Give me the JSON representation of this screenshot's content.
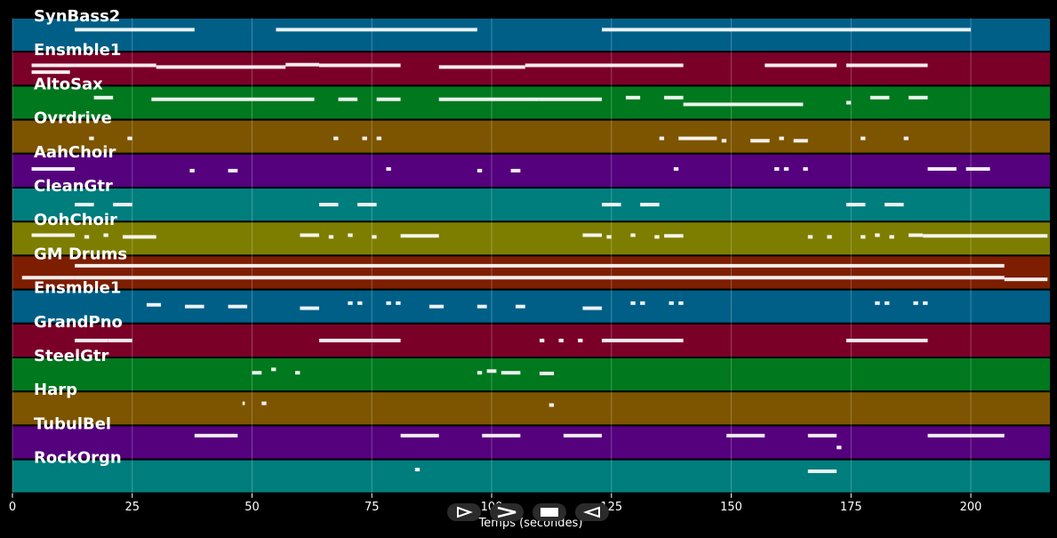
{
  "chart_data": {
    "type": "piano-roll",
    "xlabel": "Temps (secondes)",
    "xlim": [
      0,
      216.5
    ],
    "xticks": [
      0,
      25,
      50,
      75,
      100,
      125,
      150,
      175,
      200
    ],
    "grid": true,
    "tracks": [
      {
        "name": "SynBass2",
        "color": "#005f87",
        "notes": [
          [
            13,
            38,
            0.35
          ],
          [
            55,
            97,
            0.35
          ],
          [
            123,
            200,
            0.35
          ]
        ]
      },
      {
        "name": "Ensmble1",
        "color": "#7b0028",
        "notes": [
          [
            4,
            13,
            0.4
          ],
          [
            4,
            12,
            0.6
          ],
          [
            13,
            30,
            0.4
          ],
          [
            30,
            57,
            0.45
          ],
          [
            57,
            64,
            0.38
          ],
          [
            64,
            81,
            0.4
          ],
          [
            89,
            107,
            0.45
          ],
          [
            107,
            123,
            0.4
          ],
          [
            123,
            140,
            0.4
          ],
          [
            157,
            172,
            0.4
          ],
          [
            174,
            191,
            0.4
          ]
        ]
      },
      {
        "name": "AltoSax",
        "color": "#00781e",
        "notes": [
          [
            17,
            21,
            0.35
          ],
          [
            29,
            63,
            0.4
          ],
          [
            68,
            72,
            0.4
          ],
          [
            76,
            81,
            0.4
          ],
          [
            89,
            110,
            0.4
          ],
          [
            110,
            123,
            0.4
          ],
          [
            128,
            131,
            0.35
          ],
          [
            136,
            140,
            0.35
          ],
          [
            140,
            165,
            0.55
          ],
          [
            174,
            175,
            0.5
          ],
          [
            179,
            183,
            0.35
          ],
          [
            187,
            191,
            0.35
          ]
        ]
      },
      {
        "name": "Ovrdrive",
        "color": "#7d5400",
        "notes": [
          [
            16,
            17,
            0.55
          ],
          [
            24,
            25,
            0.55
          ],
          [
            67,
            68,
            0.55
          ],
          [
            73,
            74,
            0.55
          ],
          [
            76,
            77,
            0.55
          ],
          [
            135,
            136,
            0.55
          ],
          [
            139,
            147,
            0.55
          ],
          [
            148,
            149,
            0.62
          ],
          [
            154,
            158,
            0.62
          ],
          [
            160,
            161,
            0.55
          ],
          [
            163,
            166,
            0.62
          ],
          [
            177,
            178,
            0.55
          ],
          [
            186,
            187,
            0.55
          ]
        ]
      },
      {
        "name": "AahChoir",
        "color": "#55007d",
        "notes": [
          [
            4,
            13,
            0.45
          ],
          [
            37,
            38,
            0.5
          ],
          [
            45,
            47,
            0.5
          ],
          [
            78,
            79,
            0.45
          ],
          [
            97,
            98,
            0.5
          ],
          [
            104,
            106,
            0.5
          ],
          [
            138,
            139,
            0.45
          ],
          [
            159,
            160,
            0.45
          ],
          [
            161,
            162,
            0.45
          ],
          [
            165,
            166,
            0.45
          ],
          [
            191,
            197,
            0.45
          ],
          [
            199,
            204,
            0.45
          ]
        ]
      },
      {
        "name": "CleanGtr",
        "color": "#007d7d",
        "notes": [
          [
            13,
            17,
            0.5
          ],
          [
            21,
            25,
            0.5
          ],
          [
            64,
            68,
            0.5
          ],
          [
            72,
            76,
            0.5
          ],
          [
            123,
            127,
            0.5
          ],
          [
            131,
            135,
            0.5
          ],
          [
            174,
            178,
            0.5
          ],
          [
            182,
            186,
            0.5
          ]
        ]
      },
      {
        "name": "OohChoir",
        "color": "#7d7d00",
        "notes": [
          [
            4,
            13,
            0.4
          ],
          [
            15,
            16,
            0.45
          ],
          [
            19,
            20,
            0.4
          ],
          [
            23,
            30,
            0.45
          ],
          [
            60,
            64,
            0.4
          ],
          [
            66,
            67,
            0.45
          ],
          [
            70,
            71,
            0.4
          ],
          [
            75,
            76,
            0.45
          ],
          [
            81,
            89,
            0.42
          ],
          [
            119,
            123,
            0.4
          ],
          [
            124,
            125,
            0.45
          ],
          [
            129,
            130,
            0.4
          ],
          [
            134,
            135,
            0.45
          ],
          [
            136,
            140,
            0.42
          ],
          [
            166,
            167,
            0.45
          ],
          [
            170,
            171,
            0.45
          ],
          [
            177,
            178,
            0.45
          ],
          [
            180,
            181,
            0.4
          ],
          [
            183,
            184,
            0.45
          ],
          [
            187,
            190,
            0.4
          ],
          [
            190,
            216,
            0.42
          ]
        ]
      },
      {
        "name": "GM Drums",
        "color": "#7d1e00",
        "notes": [
          [
            13,
            207,
            0.3
          ],
          [
            13,
            207,
            0.65
          ],
          [
            2,
            13,
            0.65
          ],
          [
            207,
            216,
            0.7
          ]
        ]
      },
      {
        "name": "Ensmble1",
        "color": "#005f87",
        "notes": [
          [
            28,
            31,
            0.45
          ],
          [
            36,
            40,
            0.5
          ],
          [
            45,
            49,
            0.5
          ],
          [
            60,
            64,
            0.55
          ],
          [
            70,
            71,
            0.4
          ],
          [
            72,
            73,
            0.4
          ],
          [
            78,
            79,
            0.4
          ],
          [
            80,
            81,
            0.4
          ],
          [
            87,
            90,
            0.5
          ],
          [
            97,
            99,
            0.5
          ],
          [
            105,
            107,
            0.5
          ],
          [
            119,
            123,
            0.55
          ],
          [
            129,
            130,
            0.4
          ],
          [
            131,
            132,
            0.4
          ],
          [
            137,
            138,
            0.4
          ],
          [
            139,
            140,
            0.4
          ],
          [
            180,
            181,
            0.4
          ],
          [
            182,
            183,
            0.4
          ],
          [
            188,
            189,
            0.4
          ],
          [
            190,
            191,
            0.4
          ]
        ]
      },
      {
        "name": "GrandPno",
        "color": "#7b0028",
        "notes": [
          [
            13,
            20,
            0.5
          ],
          [
            20,
            25,
            0.5
          ],
          [
            64,
            81,
            0.5
          ],
          [
            110,
            111,
            0.5
          ],
          [
            114,
            115,
            0.5
          ],
          [
            118,
            119,
            0.5
          ],
          [
            123,
            140,
            0.5
          ],
          [
            174,
            191,
            0.5
          ]
        ]
      },
      {
        "name": "SteelGtr",
        "color": "#00781e",
        "notes": [
          [
            50,
            52,
            0.45
          ],
          [
            54,
            55,
            0.35
          ],
          [
            59,
            60,
            0.45
          ],
          [
            97,
            98,
            0.45
          ],
          [
            99,
            101,
            0.4
          ],
          [
            102,
            106,
            0.45
          ],
          [
            110,
            113,
            0.47
          ]
        ]
      },
      {
        "name": "Harp",
        "color": "#7d5400",
        "notes": [
          [
            48,
            48.5,
            0.35
          ],
          [
            52,
            53,
            0.35
          ],
          [
            112,
            113,
            0.4
          ]
        ]
      },
      {
        "name": "TubulBel",
        "color": "#55007d",
        "notes": [
          [
            38,
            47,
            0.3
          ],
          [
            81,
            89,
            0.3
          ],
          [
            98,
            106,
            0.3
          ],
          [
            115,
            123,
            0.3
          ],
          [
            149,
            157,
            0.3
          ],
          [
            166,
            172,
            0.3
          ],
          [
            172,
            173,
            0.65
          ],
          [
            191,
            207,
            0.3
          ]
        ]
      },
      {
        "name": "RockOrgn",
        "color": "#007d7d",
        "notes": [
          [
            84,
            85,
            0.3
          ],
          [
            166,
            172,
            0.35
          ]
        ]
      }
    ]
  },
  "controls": {
    "icons": [
      "play-icon",
      "fast-forward-icon",
      "stop-icon",
      "rewind-icon"
    ]
  }
}
